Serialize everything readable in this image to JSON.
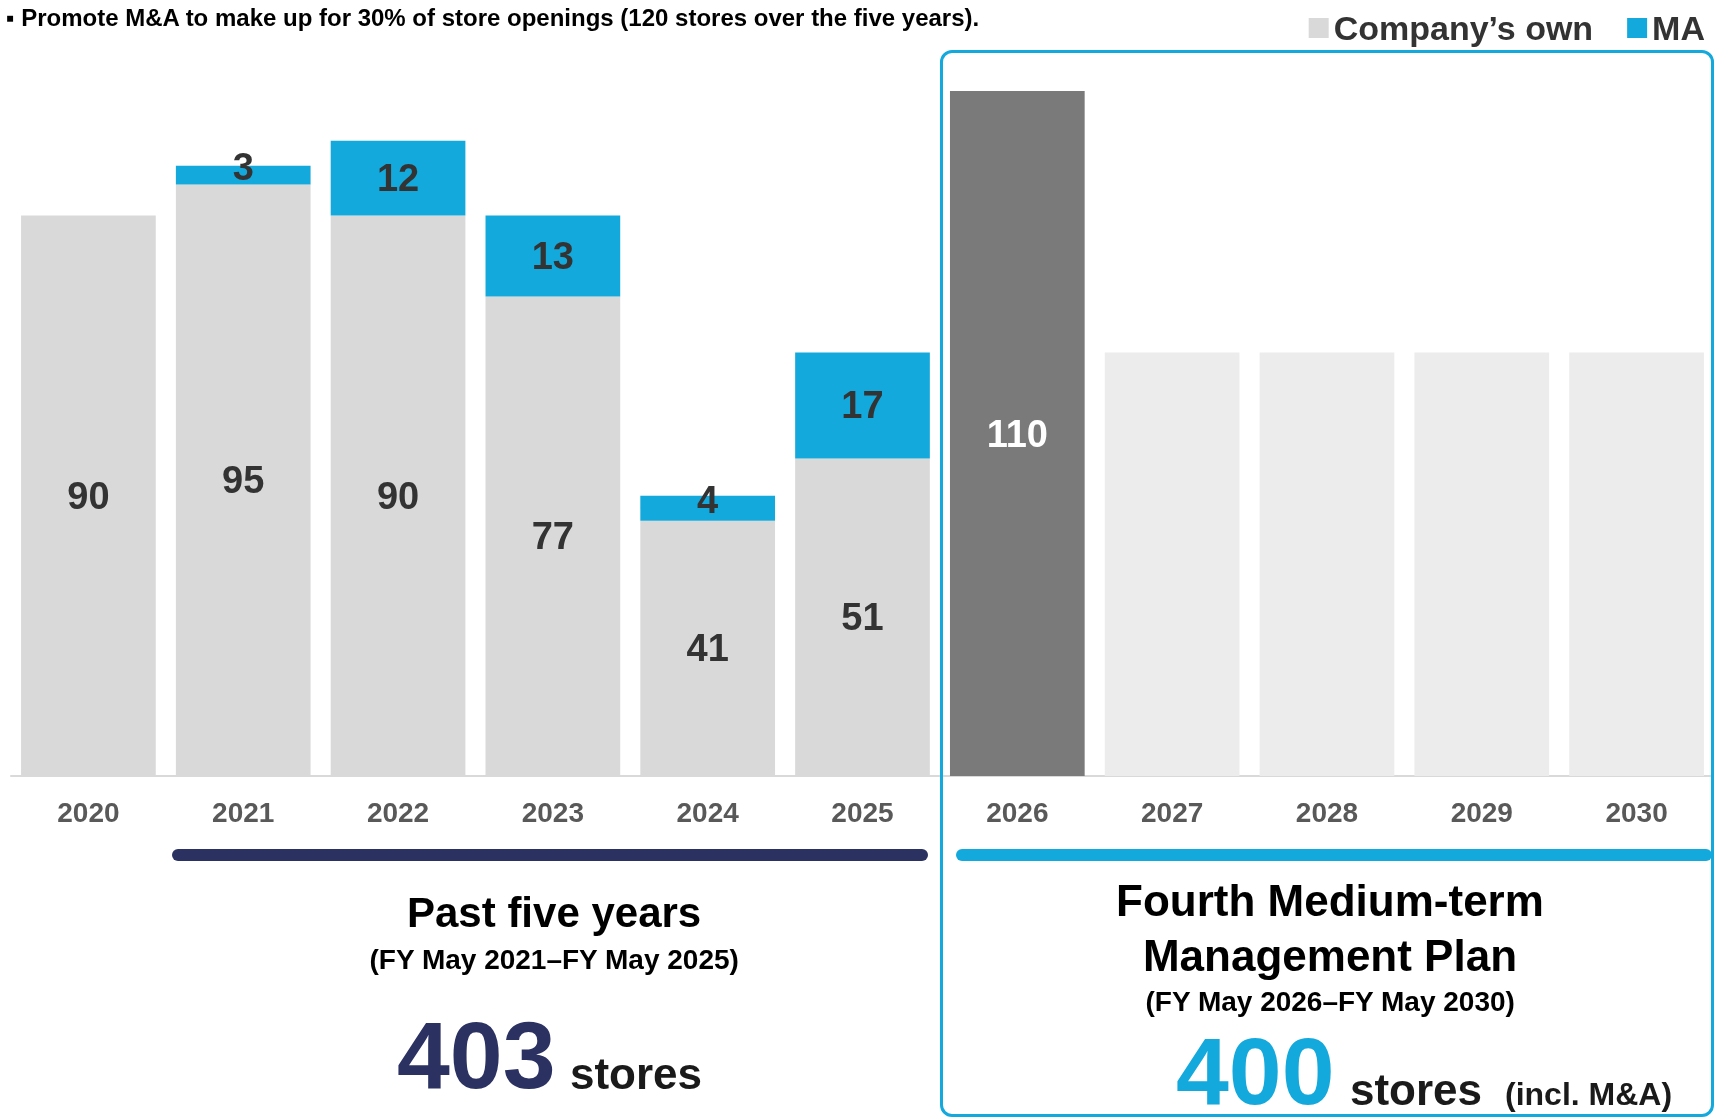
{
  "chart_data": {
    "type": "bar",
    "stacked": true,
    "title": "▪ Promote M&A to make up for 30% of store openings (120 stores over the five years).",
    "categories": [
      "2020",
      "2021",
      "2022",
      "2023",
      "2024",
      "2025",
      "2026",
      "2027",
      "2028",
      "2029",
      "2030"
    ],
    "series": [
      {
        "name": "Company’s own",
        "color": "#d9d9d9",
        "colors": [
          "#d9d9d9",
          "#d9d9d9",
          "#d9d9d9",
          "#d9d9d9",
          "#d9d9d9",
          "#d9d9d9",
          "#7a7a7a",
          "#ececec",
          "#ececec",
          "#ececec",
          "#ececec"
        ],
        "values": [
          90,
          95,
          90,
          77,
          41,
          51,
          110,
          68,
          68,
          68,
          68
        ],
        "value_labels": [
          "90",
          "95",
          "90",
          "77",
          "41",
          "51",
          "110",
          null,
          null,
          null,
          null
        ]
      },
      {
        "name": "MA",
        "color": "#13a9dc",
        "values": [
          null,
          3,
          12,
          13,
          4,
          17,
          null,
          null,
          null,
          null,
          null
        ],
        "value_labels": [
          null,
          "3",
          "12",
          "13",
          "4",
          "17",
          null,
          null,
          null,
          null,
          null
        ]
      }
    ],
    "legend": "top right",
    "annotations": [
      "Past five years",
      "(FY May 2021–FY May 2025)",
      "403",
      "stores",
      "Fourth Medium-term Management Plan",
      "(FY May 2026–FY May 2030)",
      "400",
      "stores",
      "(incl. M&A)"
    ]
  }
}
